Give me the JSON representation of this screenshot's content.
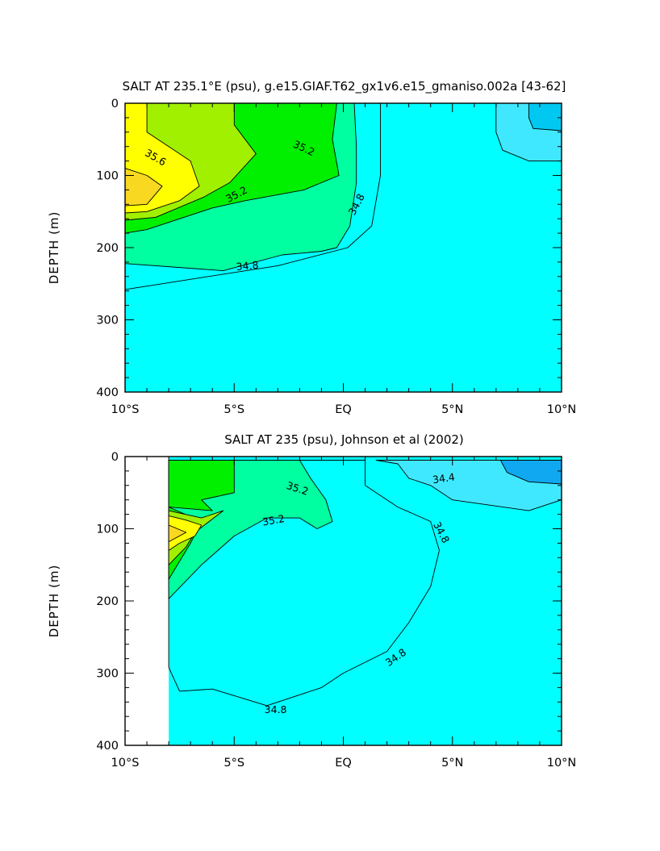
{
  "chart_data": [
    {
      "type": "contour",
      "title": "SALT AT 235.1°E (psu), g.e15.GIAF.T62_gx1v6.e15_gmaniso.002a [43-62]",
      "ylabel": "DEPTH (m)",
      "xlabel": "",
      "x_range": [
        -10,
        10
      ],
      "y_range": [
        0,
        400
      ],
      "y_inverted": true,
      "x_ticks": [
        {
          "v": -10,
          "label": "10°S"
        },
        {
          "v": -5,
          "label": "5°S"
        },
        {
          "v": 0,
          "label": "EQ"
        },
        {
          "v": 5,
          "label": "5°N"
        },
        {
          "v": 10,
          "label": "10°N"
        }
      ],
      "y_ticks": [
        {
          "v": 0,
          "label": "0"
        },
        {
          "v": 100,
          "label": "100"
        },
        {
          "v": 200,
          "label": "200"
        },
        {
          "v": 300,
          "label": "300"
        },
        {
          "v": 400,
          "label": "400"
        }
      ],
      "data_x_start": -10,
      "levels": [
        34.3,
        34.4,
        34.6,
        34.8,
        35.0,
        35.2,
        35.4,
        35.6,
        35.8
      ],
      "band_colors": {
        "34.3": "#00c8f0",
        "34.4": "#40e8ff",
        "34.6": "#00ffff",
        "34.8": "#00f0d8",
        "35.0": "#00ffa0",
        "35.2": "#00f000",
        "35.4": "#a0f000",
        "35.6": "#ffff00",
        "35.8": "#f8d820"
      },
      "regions": [
        {
          "level": 34.6,
          "points": [
            [
              -10,
              0
            ],
            [
              1.7,
              0
            ],
            [
              1.7,
              100
            ],
            [
              1.3,
              170
            ],
            [
              0.2,
              200
            ],
            [
              -3,
              225
            ],
            [
              -10,
              258
            ]
          ]
        },
        {
          "level": 35.0,
          "points": [
            [
              -10,
              0
            ],
            [
              0.5,
              0
            ],
            [
              0.6,
              60
            ],
            [
              0.6,
              110
            ],
            [
              0.3,
              170
            ],
            [
              -0.3,
              200
            ],
            [
              -1,
              205
            ],
            [
              -2.8,
              210
            ],
            [
              -5.5,
              232
            ],
            [
              -10,
              222
            ]
          ]
        },
        {
          "level": 35.2,
          "points": [
            [
              -10,
              0
            ],
            [
              -0.3,
              0
            ],
            [
              -0.5,
              50
            ],
            [
              -0.2,
              100
            ],
            [
              -1.8,
              120
            ],
            [
              -4.5,
              135
            ],
            [
              -6,
              145
            ],
            [
              -9,
              175
            ],
            [
              -10,
              180
            ]
          ]
        },
        {
          "level": 35.4,
          "points": [
            [
              -10,
              0
            ],
            [
              -5,
              0
            ],
            [
              -5,
              30
            ],
            [
              -4,
              70
            ],
            [
              -5.2,
              110
            ],
            [
              -6.4,
              130
            ],
            [
              -8.6,
              158
            ],
            [
              -10,
              162
            ]
          ]
        },
        {
          "level": 35.6,
          "points": [
            [
              -10,
              0
            ],
            [
              -9,
              0
            ],
            [
              -9,
              40
            ],
            [
              -7,
              80
            ],
            [
              -6.6,
              115
            ],
            [
              -7.5,
              135
            ],
            [
              -9,
              150
            ],
            [
              -10,
              152
            ]
          ]
        },
        {
          "level": 35.8,
          "points": [
            [
              -10,
              90
            ],
            [
              -9,
              100
            ],
            [
              -8.3,
              115
            ],
            [
              -9,
              140
            ],
            [
              -10,
              142
            ]
          ]
        },
        {
          "level": 34.4,
          "points": [
            [
              7,
              0
            ],
            [
              10,
              0
            ],
            [
              10,
              80
            ],
            [
              8.5,
              80
            ],
            [
              7.3,
              65
            ],
            [
              7,
              40
            ]
          ]
        },
        {
          "level": 34.3,
          "points": [
            [
              8.5,
              0
            ],
            [
              10,
              0
            ],
            [
              10,
              38
            ],
            [
              8.7,
              35
            ],
            [
              8.5,
              20
            ]
          ]
        }
      ],
      "contour_labels": [
        {
          "text": "35.6",
          "x": -8.6,
          "y": 75,
          "angle": 30
        },
        {
          "text": "35.2",
          "x": -1.8,
          "y": 62,
          "angle": 25
        },
        {
          "text": "35.2",
          "x": -4.9,
          "y": 126,
          "angle": -28
        },
        {
          "text": "34.8",
          "x": 0.6,
          "y": 140,
          "angle": -62
        },
        {
          "text": "34.8",
          "x": -4.4,
          "y": 225,
          "angle": -5
        }
      ]
    },
    {
      "type": "contour",
      "title": "SALT AT 235 (psu), Johnson et al (2002)",
      "ylabel": "DEPTH (m)",
      "xlabel": "",
      "x_range": [
        -10,
        10
      ],
      "y_range": [
        0,
        400
      ],
      "y_inverted": true,
      "x_ticks": [
        {
          "v": -10,
          "label": "10°S"
        },
        {
          "v": -5,
          "label": "5°S"
        },
        {
          "v": 0,
          "label": "EQ"
        },
        {
          "v": 5,
          "label": "5°N"
        },
        {
          "v": 10,
          "label": "10°N"
        }
      ],
      "y_ticks": [
        {
          "v": 0,
          "label": "0"
        },
        {
          "v": 100,
          "label": "100"
        },
        {
          "v": 200,
          "label": "200"
        },
        {
          "v": 300,
          "label": "300"
        },
        {
          "v": 400,
          "label": "400"
        }
      ],
      "data_x_start": -8,
      "levels": [
        34.3,
        34.4,
        34.6,
        34.8,
        35.0,
        35.2,
        35.4,
        35.6,
        35.8
      ],
      "band_colors": {
        "34.3": "#10a8f0",
        "34.4": "#40e8ff",
        "34.6": "#00ffff",
        "34.8": "#00f0d8",
        "35.0": "#00ffa0",
        "35.2": "#00f000",
        "35.4": "#a0f000",
        "35.6": "#ffff00",
        "35.8": "#f8d820"
      },
      "regions": [
        {
          "level": 34.6,
          "points": [
            [
              -8,
              5
            ],
            [
              1,
              5
            ],
            [
              1,
              40
            ],
            [
              2.5,
              70
            ],
            [
              4,
              90
            ],
            [
              4.4,
              130
            ],
            [
              4,
              180
            ],
            [
              3,
              230
            ],
            [
              2,
              270
            ],
            [
              0,
              300
            ],
            [
              -1,
              320
            ],
            [
              -3.5,
              345
            ],
            [
              -6,
              322
            ],
            [
              -7.5,
              325
            ],
            [
              -8,
              292
            ]
          ]
        },
        {
          "level": 35.0,
          "points": [
            [
              -8,
              5
            ],
            [
              -2,
              5
            ],
            [
              -1.5,
              30
            ],
            [
              -0.8,
              60
            ],
            [
              -0.5,
              90
            ],
            [
              -1.2,
              100
            ],
            [
              -2,
              85
            ],
            [
              -3.5,
              85
            ],
            [
              -5,
              110
            ],
            [
              -6.5,
              150
            ],
            [
              -8,
              197
            ]
          ]
        },
        {
          "level": 35.2,
          "points": [
            [
              -8,
              5
            ],
            [
              -5,
              5
            ],
            [
              -5,
              50
            ],
            [
              -6.5,
              60
            ],
            [
              -6,
              75
            ],
            [
              -8,
              70
            ],
            [
              -6.5,
              90
            ],
            [
              -7,
              120
            ],
            [
              -8,
              170
            ]
          ]
        },
        {
          "level": 35.4,
          "points": [
            [
              -8,
              75
            ],
            [
              -6.5,
              85
            ],
            [
              -5.5,
              75
            ],
            [
              -6.8,
              105
            ],
            [
              -7.2,
              125
            ],
            [
              -8,
              150
            ]
          ]
        },
        {
          "level": 35.6,
          "points": [
            [
              -8,
              82
            ],
            [
              -7.2,
              88
            ],
            [
              -6.5,
              95
            ],
            [
              -6.8,
              110
            ],
            [
              -7.5,
              120
            ],
            [
              -8,
              130
            ]
          ]
        },
        {
          "level": 35.8,
          "points": [
            [
              -8,
              95
            ],
            [
              -7.2,
              105
            ],
            [
              -8,
              118
            ]
          ]
        },
        {
          "level": 34.4,
          "points": [
            [
              1.5,
              5
            ],
            [
              10,
              5
            ],
            [
              10,
              60
            ],
            [
              8.5,
              75
            ],
            [
              5,
              60
            ],
            [
              4,
              40
            ],
            [
              3,
              30
            ],
            [
              2.5,
              10
            ]
          ]
        },
        {
          "level": 34.3,
          "points": [
            [
              7.2,
              5
            ],
            [
              10,
              5
            ],
            [
              10,
              38
            ],
            [
              8.5,
              35
            ],
            [
              7.5,
              22
            ]
          ]
        }
      ],
      "contour_labels": [
        {
          "text": "34.4",
          "x": 4.6,
          "y": 30,
          "angle": -8
        },
        {
          "text": "35.2",
          "x": -2.1,
          "y": 44,
          "angle": 18
        },
        {
          "text": "35.2",
          "x": -3.2,
          "y": 88,
          "angle": -10
        },
        {
          "text": "34.8",
          "x": 4.5,
          "y": 105,
          "angle": 62
        },
        {
          "text": "34.8",
          "x": 2.4,
          "y": 278,
          "angle": -35
        },
        {
          "text": "34.8",
          "x": -3.1,
          "y": 350,
          "angle": 0
        }
      ]
    }
  ]
}
